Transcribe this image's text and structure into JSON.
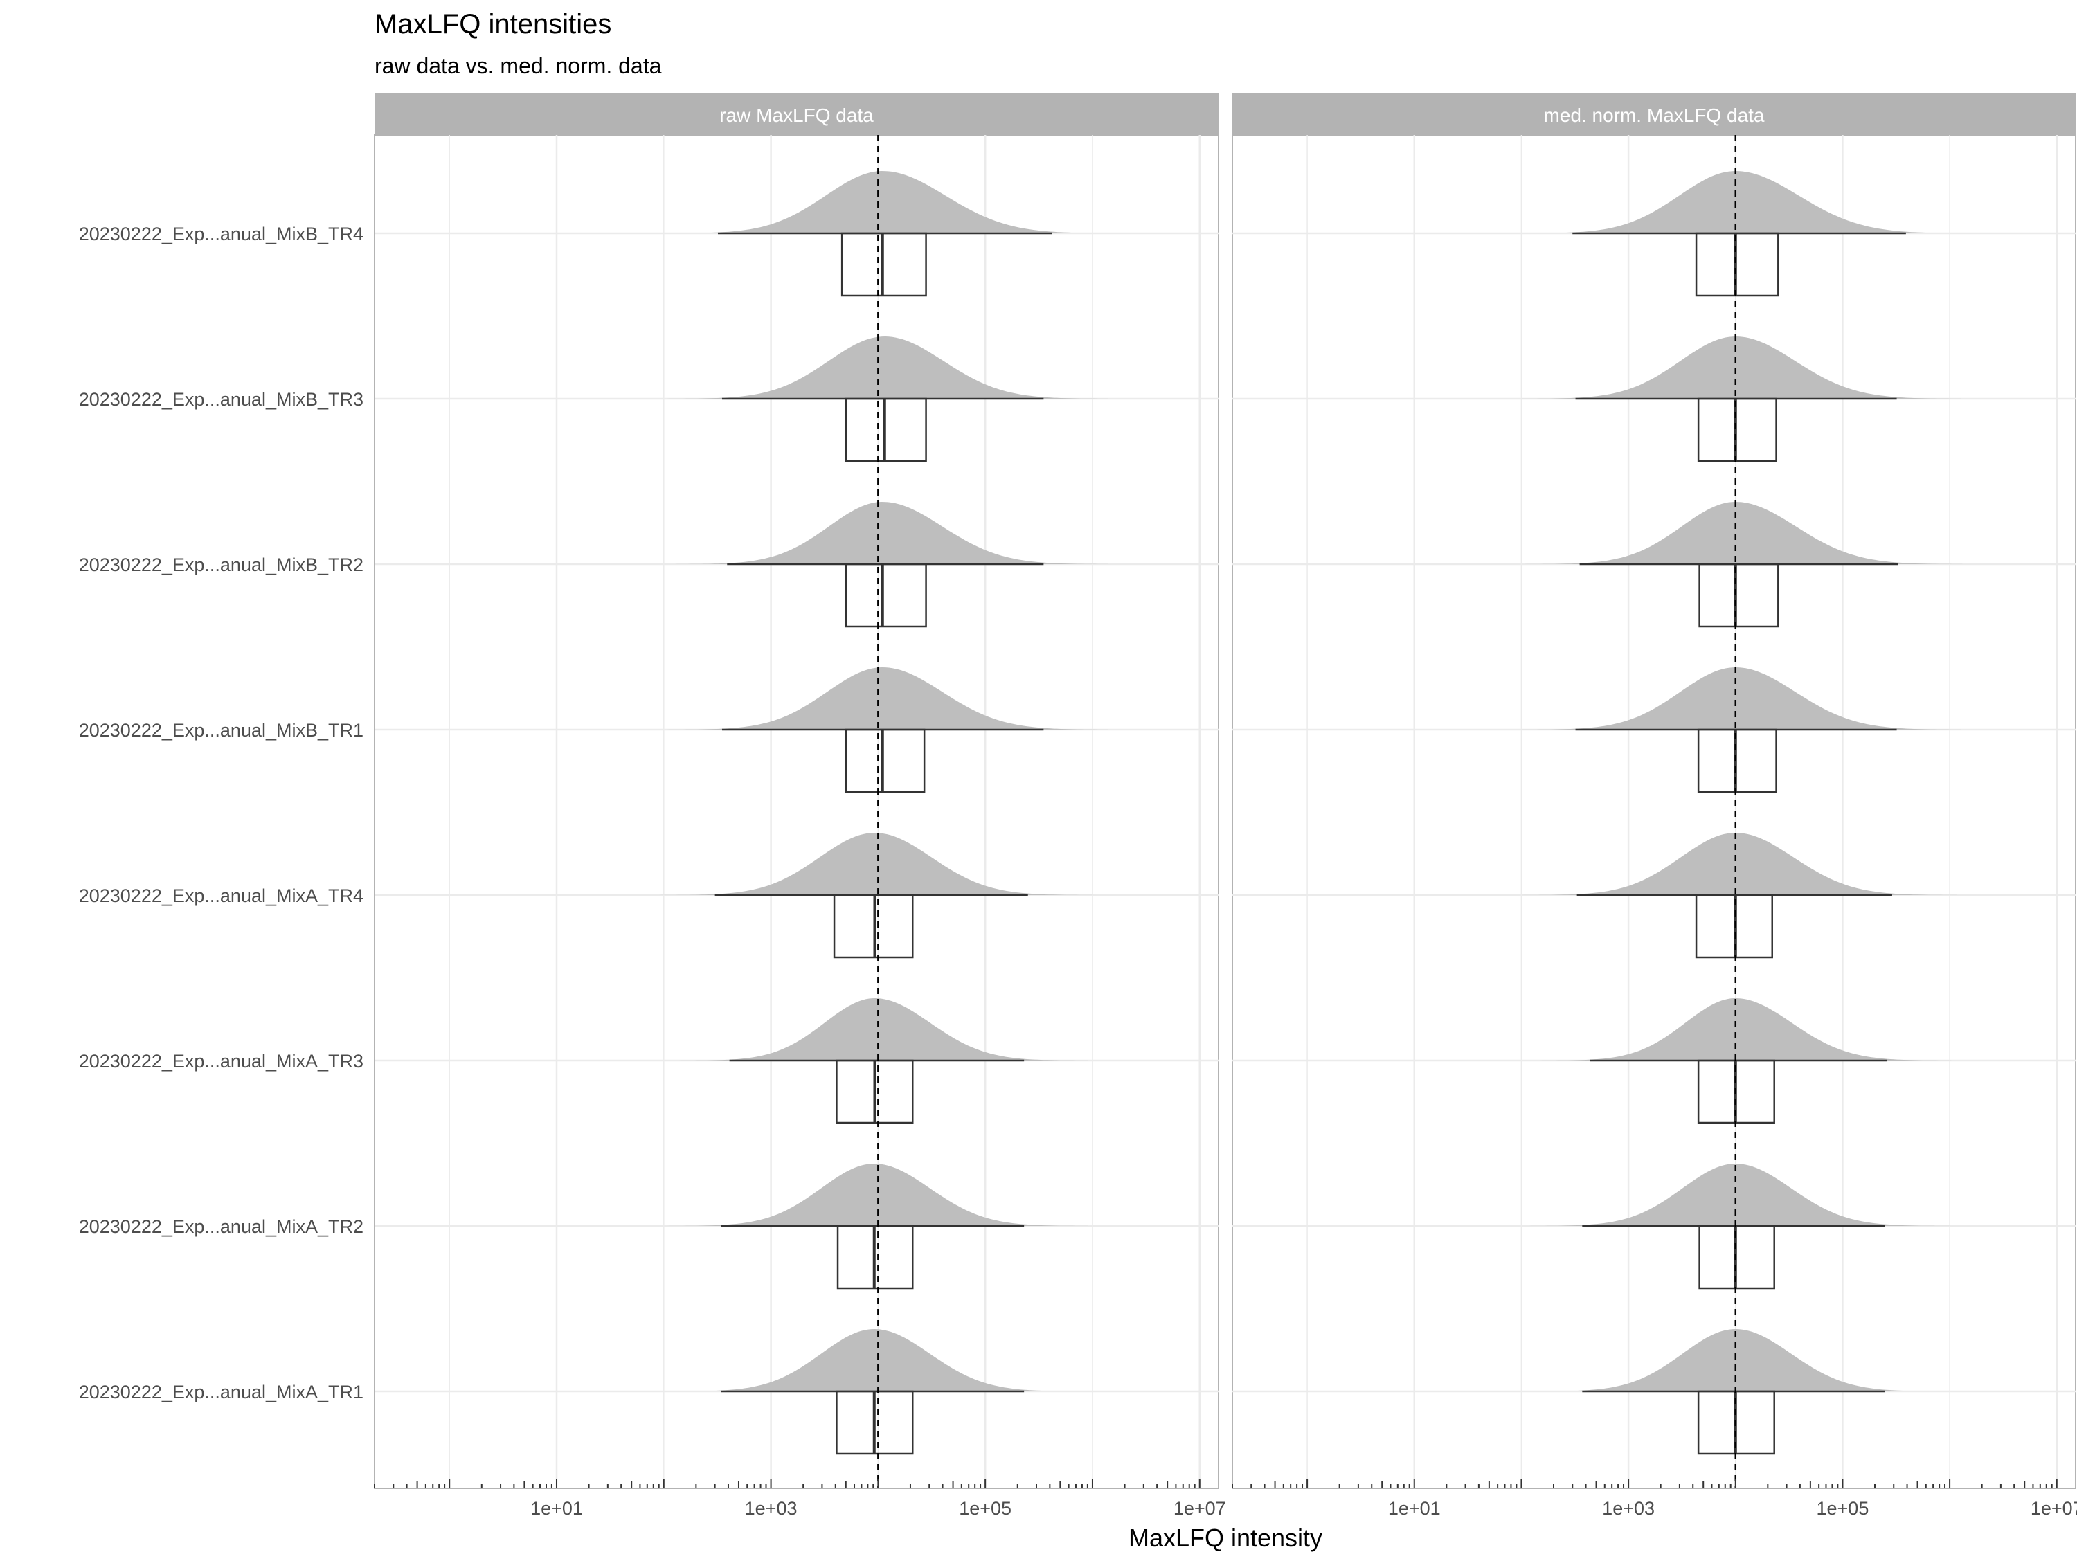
{
  "chart_data": {
    "type": "density_ridgeline_with_boxplot",
    "title": "MaxLFQ intensities",
    "subtitle": "raw data vs. med. norm. data",
    "xlabel": "MaxLFQ intensity",
    "x_scale": "log10",
    "xlim": [
      0.2,
      15000000
    ],
    "x_ticks": [
      {
        "value": 10,
        "label": "1e+01"
      },
      {
        "value": 1000,
        "label": "1e+03"
      },
      {
        "value": 100000,
        "label": "1e+05"
      },
      {
        "value": 10000000,
        "label": "1e+07"
      }
    ],
    "grid": true,
    "reference_line": {
      "value": 10000,
      "style": "dashed"
    },
    "colors": {
      "density_fill": "#bebebe",
      "strip": "#b3b3b3",
      "grid": "#ebebeb",
      "box": "#333333"
    },
    "samples": [
      "20230222_Exp...anual_MixB_TR4",
      "20230222_Exp...anual_MixB_TR3",
      "20230222_Exp...anual_MixB_TR2",
      "20230222_Exp...anual_MixB_TR1",
      "20230222_Exp...anual_MixA_TR4",
      "20230222_Exp...anual_MixA_TR3",
      "20230222_Exp...anual_MixA_TR2",
      "20230222_Exp...anual_MixA_TR1"
    ],
    "panels": [
      {
        "label": "raw MaxLFQ data",
        "series": [
          {
            "q1": 4600,
            "median": 11000,
            "q3": 28000,
            "whisker_low": 320,
            "whisker_high": 420000
          },
          {
            "q1": 5000,
            "median": 11500,
            "q3": 28000,
            "whisker_low": 350,
            "whisker_high": 350000
          },
          {
            "q1": 5000,
            "median": 11000,
            "q3": 28000,
            "whisker_low": 390,
            "whisker_high": 350000
          },
          {
            "q1": 5000,
            "median": 11000,
            "q3": 27000,
            "whisker_low": 350,
            "whisker_high": 350000
          },
          {
            "q1": 3900,
            "median": 9300,
            "q3": 21000,
            "whisker_low": 300,
            "whisker_high": 250000
          },
          {
            "q1": 4100,
            "median": 9300,
            "q3": 21000,
            "whisker_low": 410,
            "whisker_high": 230000
          },
          {
            "q1": 4200,
            "median": 9200,
            "q3": 21000,
            "whisker_low": 340,
            "whisker_high": 230000
          },
          {
            "q1": 4100,
            "median": 9200,
            "q3": 21000,
            "whisker_low": 340,
            "whisker_high": 230000
          }
        ]
      },
      {
        "label": "med. norm. MaxLFQ data",
        "series": [
          {
            "q1": 4300,
            "median": 10000,
            "q3": 25000,
            "whisker_low": 300,
            "whisker_high": 390000
          },
          {
            "q1": 4500,
            "median": 10000,
            "q3": 24000,
            "whisker_low": 320,
            "whisker_high": 320000
          },
          {
            "q1": 4600,
            "median": 10000,
            "q3": 25000,
            "whisker_low": 350,
            "whisker_high": 330000
          },
          {
            "q1": 4500,
            "median": 10000,
            "q3": 24000,
            "whisker_low": 320,
            "whisker_high": 320000
          },
          {
            "q1": 4300,
            "median": 10000,
            "q3": 22000,
            "whisker_low": 330,
            "whisker_high": 290000
          },
          {
            "q1": 4500,
            "median": 10000,
            "q3": 23000,
            "whisker_low": 440,
            "whisker_high": 260000
          },
          {
            "q1": 4600,
            "median": 10000,
            "q3": 23000,
            "whisker_low": 370,
            "whisker_high": 250000
          },
          {
            "q1": 4500,
            "median": 10000,
            "q3": 23000,
            "whisker_low": 370,
            "whisker_high": 250000
          }
        ]
      }
    ]
  }
}
